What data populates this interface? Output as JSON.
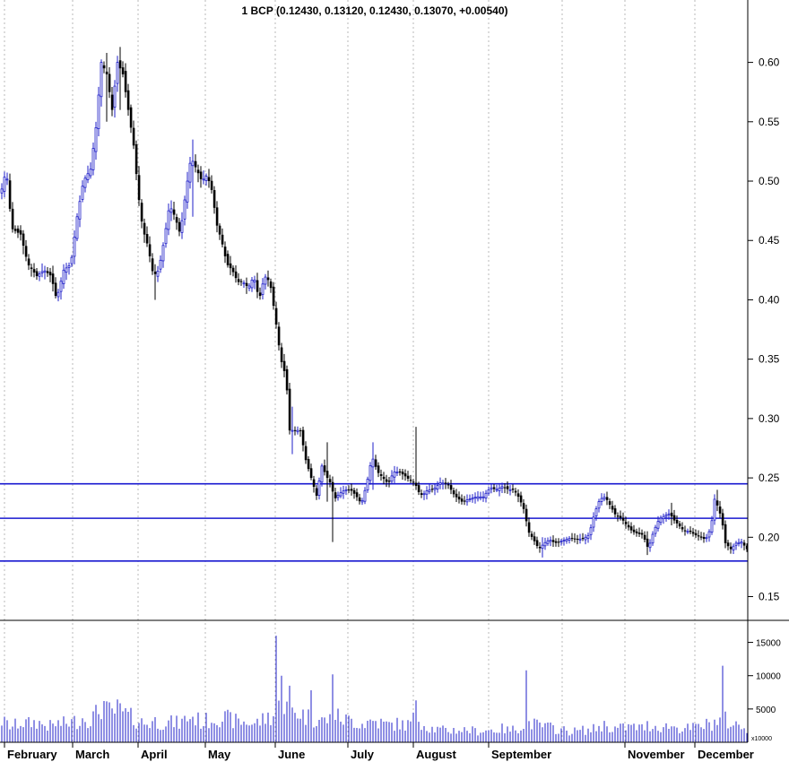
{
  "chart_data": {
    "type": "candlestick",
    "title": "1 BCP (0.12430, 0.13120, 0.12430, 0.13070, +0.00540)",
    "price_axis": {
      "ylim": [
        0.13,
        0.645
      ],
      "ticks": [
        "0.15",
        "0.20",
        "0.25",
        "0.30",
        "0.35",
        "0.40",
        "0.45",
        "0.50",
        "0.55",
        "0.60"
      ],
      "grid": "vertical dotted at month starts"
    },
    "volume_axis": {
      "ylim": [
        0,
        17500
      ],
      "ticks": [
        "5000",
        "10000",
        "15000"
      ],
      "scale_note": "x10000"
    },
    "months": [
      "February",
      "March",
      "April",
      "May",
      "June",
      "July",
      "August",
      "September",
      "November",
      "December"
    ],
    "horizontal_lines": [
      0.245,
      0.216,
      0.18
    ],
    "colors": {
      "up": "#1f1fc8",
      "down": "#000000",
      "line": "#1818d0",
      "volume": "#1f1fc8",
      "grid": "#b8b8b8"
    },
    "anchors": [
      [
        0,
        0.49,
        3500
      ],
      [
        6,
        0.51,
        3000
      ],
      [
        12,
        0.46,
        2500
      ],
      [
        22,
        0.455,
        3200
      ],
      [
        30,
        0.43,
        3000
      ],
      [
        40,
        0.42,
        3300
      ],
      [
        48,
        0.425,
        2800
      ],
      [
        56,
        0.42,
        2600
      ],
      [
        62,
        0.4,
        3000
      ],
      [
        70,
        0.425,
        3000
      ],
      [
        78,
        0.43,
        3200
      ],
      [
        85,
        0.47,
        3500
      ],
      [
        92,
        0.5,
        4000
      ],
      [
        100,
        0.51,
        3800
      ],
      [
        106,
        0.545,
        4500
      ],
      [
        112,
        0.6,
        5800
      ],
      [
        118,
        0.59,
        5000
      ],
      [
        124,
        0.56,
        4800
      ],
      [
        130,
        0.6,
        5200
      ],
      [
        136,
        0.59,
        4800
      ],
      [
        142,
        0.56,
        4200
      ],
      [
        148,
        0.53,
        3800
      ],
      [
        153,
        0.49,
        3500
      ],
      [
        158,
        0.46,
        3200
      ],
      [
        164,
        0.445,
        3000
      ],
      [
        170,
        0.42,
        3500
      ],
      [
        176,
        0.425,
        3200
      ],
      [
        182,
        0.45,
        3300
      ],
      [
        188,
        0.48,
        3200
      ],
      [
        194,
        0.47,
        3200
      ],
      [
        200,
        0.455,
        3000
      ],
      [
        206,
        0.49,
        3800
      ],
      [
        212,
        0.52,
        4200
      ],
      [
        218,
        0.51,
        3800
      ],
      [
        224,
        0.5,
        3200
      ],
      [
        230,
        0.505,
        3500
      ],
      [
        236,
        0.49,
        3800
      ],
      [
        240,
        0.465,
        4200
      ],
      [
        246,
        0.45,
        4000
      ],
      [
        252,
        0.43,
        3800
      ],
      [
        258,
        0.425,
        3600
      ],
      [
        264,
        0.415,
        3300
      ],
      [
        270,
        0.415,
        3300
      ],
      [
        276,
        0.41,
        3200
      ],
      [
        282,
        0.42,
        3000
      ],
      [
        288,
        0.4,
        3300
      ],
      [
        294,
        0.42,
        3800
      ],
      [
        300,
        0.415,
        4200
      ],
      [
        306,
        0.385,
        4500
      ],
      [
        312,
        0.35,
        6000
      ],
      [
        318,
        0.335,
        5800
      ],
      [
        322,
        0.29,
        5500
      ],
      [
        328,
        0.29,
        5000
      ],
      [
        334,
        0.29,
        4800
      ],
      [
        340,
        0.265,
        4200
      ],
      [
        346,
        0.25,
        4000
      ],
      [
        352,
        0.235,
        3800
      ],
      [
        358,
        0.26,
        3500
      ],
      [
        364,
        0.25,
        3600
      ],
      [
        368,
        0.245,
        3800
      ],
      [
        372,
        0.232,
        4200
      ],
      [
        378,
        0.237,
        4000
      ],
      [
        384,
        0.24,
        3600
      ],
      [
        390,
        0.24,
        3600
      ],
      [
        396,
        0.235,
        3300
      ],
      [
        402,
        0.228,
        3000
      ],
      [
        408,
        0.245,
        3200
      ],
      [
        414,
        0.268,
        3500
      ],
      [
        420,
        0.255,
        3300
      ],
      [
        426,
        0.25,
        3000
      ],
      [
        432,
        0.245,
        2800
      ],
      [
        438,
        0.255,
        2900
      ],
      [
        444,
        0.255,
        3000
      ],
      [
        450,
        0.252,
        2800
      ],
      [
        456,
        0.248,
        2900
      ],
      [
        462,
        0.245,
        4000
      ],
      [
        466,
        0.238,
        4500
      ],
      [
        470,
        0.235,
        3000
      ],
      [
        476,
        0.24,
        2500
      ],
      [
        482,
        0.24,
        2200
      ],
      [
        490,
        0.246,
        2000
      ],
      [
        498,
        0.245,
        1900
      ],
      [
        506,
        0.235,
        2000
      ],
      [
        514,
        0.23,
        2000
      ],
      [
        522,
        0.232,
        2000
      ],
      [
        530,
        0.234,
        1800
      ],
      [
        538,
        0.234,
        1900
      ],
      [
        546,
        0.242,
        2000
      ],
      [
        552,
        0.24,
        2000
      ],
      [
        560,
        0.243,
        2200
      ],
      [
        566,
        0.24,
        1900
      ],
      [
        572,
        0.24,
        2100
      ],
      [
        578,
        0.233,
        2500
      ],
      [
        584,
        0.222,
        3000
      ],
      [
        588,
        0.205,
        3200
      ],
      [
        594,
        0.198,
        3000
      ],
      [
        600,
        0.19,
        2600
      ],
      [
        606,
        0.195,
        2600
      ],
      [
        612,
        0.198,
        2400
      ],
      [
        618,
        0.195,
        2200
      ],
      [
        626,
        0.197,
        2000
      ],
      [
        634,
        0.199,
        1800
      ],
      [
        642,
        0.198,
        1800
      ],
      [
        650,
        0.199,
        2000
      ],
      [
        656,
        0.202,
        1900
      ],
      [
        662,
        0.22,
        2200
      ],
      [
        668,
        0.232,
        2600
      ],
      [
        674,
        0.234,
        2800
      ],
      [
        680,
        0.226,
        2400
      ],
      [
        686,
        0.218,
        2200
      ],
      [
        692,
        0.216,
        2300
      ],
      [
        698,
        0.21,
        2500
      ],
      [
        704,
        0.205,
        2500
      ],
      [
        710,
        0.203,
        2400
      ],
      [
        716,
        0.202,
        2300
      ],
      [
        722,
        0.19,
        2800
      ],
      [
        728,
        0.205,
        2600
      ],
      [
        734,
        0.215,
        2600
      ],
      [
        740,
        0.218,
        2400
      ],
      [
        746,
        0.22,
        2800
      ],
      [
        750,
        0.215,
        2500
      ],
      [
        756,
        0.21,
        2300
      ],
      [
        762,
        0.205,
        2300
      ],
      [
        768,
        0.205,
        2200
      ],
      [
        774,
        0.202,
        2400
      ],
      [
        780,
        0.2,
        2600
      ],
      [
        786,
        0.198,
        2800
      ],
      [
        792,
        0.208,
        3000
      ],
      [
        796,
        0.232,
        3300
      ],
      [
        800,
        0.225,
        3500
      ],
      [
        804,
        0.215,
        3200
      ],
      [
        808,
        0.195,
        3600
      ],
      [
        814,
        0.19,
        3000
      ],
      [
        820,
        0.195,
        2800
      ],
      [
        826,
        0.196,
        2600
      ],
      [
        832,
        0.19,
        2400
      ]
    ],
    "notable_wicks": [
      [
        119,
        0.608,
        0.55
      ],
      [
        134,
        0.613,
        0.56
      ],
      [
        172,
        0.43,
        0.4
      ],
      [
        214,
        0.535,
        0.47
      ],
      [
        326,
        0.31,
        0.27
      ],
      [
        364,
        0.28,
        0.23
      ],
      [
        370,
        0.235,
        0.196
      ],
      [
        416,
        0.28,
        0.24
      ],
      [
        464,
        0.293,
        0.24
      ],
      [
        604,
        0.2,
        0.183
      ],
      [
        722,
        0.205,
        0.185
      ],
      [
        748,
        0.229,
        0.21
      ],
      [
        798,
        0.24,
        0.222
      ]
    ],
    "volume_spikes": [
      [
        308,
        16000
      ],
      [
        312,
        10000
      ],
      [
        323,
        8500
      ],
      [
        345,
        7800
      ],
      [
        371,
        10200
      ],
      [
        464,
        6300
      ],
      [
        586,
        10800
      ],
      [
        806,
        11500
      ],
      [
        116,
        6200
      ]
    ]
  }
}
